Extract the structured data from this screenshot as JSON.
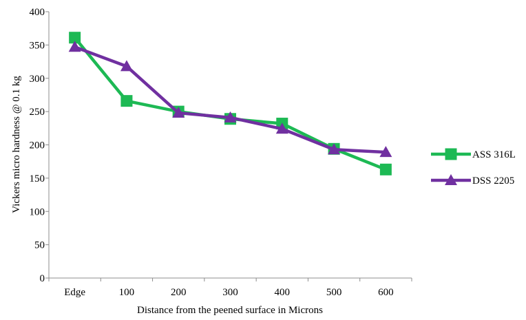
{
  "chart_data": {
    "type": "line",
    "title": "",
    "xlabel": "Distance from the peened surface in Microns",
    "ylabel": "Vickers micro hardness @ 0.1 kg",
    "categories": [
      "Edge",
      "100",
      "200",
      "300",
      "400",
      "500",
      "600"
    ],
    "ylim": [
      0,
      400
    ],
    "yticks": [
      0,
      50,
      100,
      150,
      200,
      250,
      300,
      350,
      400
    ],
    "grid": false,
    "legend_position": "right",
    "series": [
      {
        "name": "ASS 316L",
        "color": "#1db954",
        "marker": "square",
        "values": [
          361,
          266,
          250,
          239,
          232,
          194,
          163
        ]
      },
      {
        "name": "DSS 2205",
        "color": "#7030a0",
        "marker": "triangle",
        "values": [
          347,
          318,
          248,
          241,
          224,
          193,
          189
        ]
      }
    ]
  }
}
